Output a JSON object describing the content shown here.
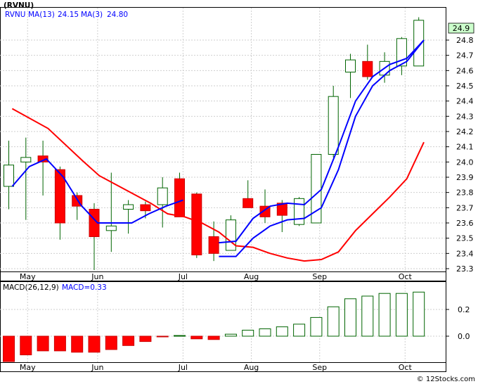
{
  "chart_data": [
    {
      "type": "candlestick",
      "ticker": "(RVNU)",
      "indicators": [
        {
          "label": "MA(13)",
          "value": "24.15",
          "color": "#ff0000"
        },
        {
          "label": "MA(3)",
          "value": "24.80",
          "color": "#0000ff"
        }
      ],
      "last_price": "24.9",
      "y_ticks": [
        "24.8",
        "24.7",
        "24.6",
        "24.5",
        "24.4",
        "24.3",
        "24.2",
        "24.1",
        "24.0",
        "23.9",
        "23.8",
        "23.7",
        "23.6",
        "23.5",
        "23.4",
        "23.3"
      ],
      "ylim": [
        23.25,
        25.0
      ],
      "months": [
        {
          "label": "May",
          "week": 1.1
        },
        {
          "label": "Jun",
          "week": 5.2
        },
        {
          "label": "Jul",
          "week": 10.2
        },
        {
          "label": "Aug",
          "week": 14.2
        },
        {
          "label": "Sep",
          "week": 18.2
        },
        {
          "label": "Oct",
          "week": 23.2
        }
      ],
      "candles": [
        {
          "o": 23.84,
          "h": 24.14,
          "l": 23.69,
          "c": 23.98
        },
        {
          "o": 24.0,
          "h": 24.16,
          "l": 23.62,
          "c": 24.03
        },
        {
          "o": 24.04,
          "h": 24.14,
          "l": 23.78,
          "c": 24.0
        },
        {
          "o": 23.95,
          "h": 23.97,
          "l": 23.49,
          "c": 23.6
        },
        {
          "o": 23.78,
          "h": 23.8,
          "l": 23.62,
          "c": 23.71
        },
        {
          "o": 23.69,
          "h": 23.73,
          "l": 23.29,
          "c": 23.51
        },
        {
          "o": 23.55,
          "h": 23.93,
          "l": 23.41,
          "c": 23.58
        },
        {
          "o": 23.69,
          "h": 23.75,
          "l": 23.53,
          "c": 23.72
        },
        {
          "o": 23.72,
          "h": 23.74,
          "l": 23.63,
          "c": 23.68
        },
        {
          "o": 23.72,
          "h": 23.9,
          "l": 23.57,
          "c": 23.83
        },
        {
          "o": 23.89,
          "h": 23.93,
          "l": 23.65,
          "c": 23.64
        },
        {
          "o": 23.79,
          "h": 23.8,
          "l": 23.37,
          "c": 23.39
        },
        {
          "o": 23.51,
          "h": 23.61,
          "l": 23.35,
          "c": 23.4
        },
        {
          "o": 23.42,
          "h": 23.65,
          "l": 23.42,
          "c": 23.62
        },
        {
          "o": 23.76,
          "h": 23.88,
          "l": 23.7,
          "c": 23.7
        },
        {
          "o": 23.71,
          "h": 23.82,
          "l": 23.6,
          "c": 23.64
        },
        {
          "o": 23.73,
          "h": 23.75,
          "l": 23.54,
          "c": 23.65
        },
        {
          "o": 23.59,
          "h": 23.77,
          "l": 23.58,
          "c": 23.76
        },
        {
          "o": 23.6,
          "h": 24.05,
          "l": 23.6,
          "c": 24.05
        },
        {
          "o": 24.05,
          "h": 24.5,
          "l": 24.03,
          "c": 24.43
        },
        {
          "o": 24.59,
          "h": 24.71,
          "l": 24.42,
          "c": 24.67
        },
        {
          "o": 24.66,
          "h": 24.77,
          "l": 24.54,
          "c": 24.56
        },
        {
          "o": 24.57,
          "h": 24.72,
          "l": 24.52,
          "c": 24.66
        },
        {
          "o": 24.63,
          "h": 24.82,
          "l": 24.57,
          "c": 24.81
        },
        {
          "o": 24.63,
          "h": 24.95,
          "l": 24.63,
          "c": 24.93
        }
      ],
      "ma13": [
        [
          0.2,
          24.35
        ],
        [
          2.3,
          24.22
        ],
        [
          4.3,
          24.01
        ],
        [
          5.3,
          23.91
        ],
        [
          7.3,
          23.79
        ],
        [
          8.3,
          23.73
        ],
        [
          9.3,
          23.66
        ],
        [
          10.3,
          23.64
        ],
        [
          11.3,
          23.6
        ],
        [
          12.3,
          23.54
        ],
        [
          13.3,
          23.45
        ],
        [
          14.3,
          23.44
        ],
        [
          15.3,
          23.4
        ],
        [
          16.3,
          23.37
        ],
        [
          17.3,
          23.35
        ],
        [
          18.3,
          23.36
        ],
        [
          19.3,
          23.41
        ],
        [
          20.3,
          23.55
        ],
        [
          21.3,
          23.66
        ],
        [
          22.3,
          23.77
        ],
        [
          23.3,
          23.89
        ],
        [
          24.3,
          24.13
        ]
      ],
      "ma3": [
        [
          0.2,
          23.84
        ],
        [
          1.2,
          23.97
        ],
        [
          2.2,
          24.02
        ],
        [
          3.2,
          23.9
        ],
        [
          4.2,
          23.72
        ],
        [
          5.2,
          23.6
        ],
        [
          6.2,
          23.6
        ],
        [
          7.2,
          23.6
        ],
        [
          8.2,
          23.66
        ],
        [
          9.2,
          23.71
        ],
        [
          10.2,
          23.75
        ]
      ],
      "ma3_b": [
        [
          12.3,
          23.47
        ],
        [
          13.3,
          23.48
        ],
        [
          14.3,
          23.63
        ],
        [
          15.3,
          23.71
        ],
        [
          16.3,
          23.73
        ],
        [
          17.3,
          23.72
        ],
        [
          18.3,
          23.82
        ],
        [
          19.3,
          24.1
        ],
        [
          20.3,
          24.4
        ],
        [
          21.3,
          24.56
        ],
        [
          22.3,
          24.64
        ],
        [
          23.3,
          24.68
        ],
        [
          24.3,
          24.8
        ]
      ],
      "ma13_overlay": [
        [
          12.3,
          23.38
        ],
        [
          13.3,
          23.38
        ],
        [
          14.3,
          23.5
        ],
        [
          15.3,
          23.58
        ],
        [
          16.3,
          23.62
        ],
        [
          17.3,
          23.63
        ],
        [
          18.3,
          23.7
        ],
        [
          19.3,
          23.95
        ],
        [
          20.3,
          24.3
        ],
        [
          21.3,
          24.5
        ],
        [
          22.3,
          24.6
        ],
        [
          23.3,
          24.66
        ],
        [
          24.3,
          24.8
        ]
      ]
    },
    {
      "type": "bar",
      "title": "MACD(26,12,9)",
      "value_label": "MACD=0.33",
      "y_ticks": [
        "0.2",
        "0.0"
      ],
      "ylim": [
        -0.2,
        0.35
      ],
      "values": [
        -0.19,
        -0.14,
        -0.11,
        -0.11,
        -0.12,
        -0.12,
        -0.1,
        -0.07,
        -0.04,
        -0.005,
        0.005,
        -0.02,
        -0.025,
        0.015,
        0.045,
        0.055,
        0.07,
        0.09,
        0.14,
        0.22,
        0.28,
        0.3,
        0.32,
        0.32,
        0.33
      ]
    }
  ],
  "credit": "© 12Stocks.com"
}
